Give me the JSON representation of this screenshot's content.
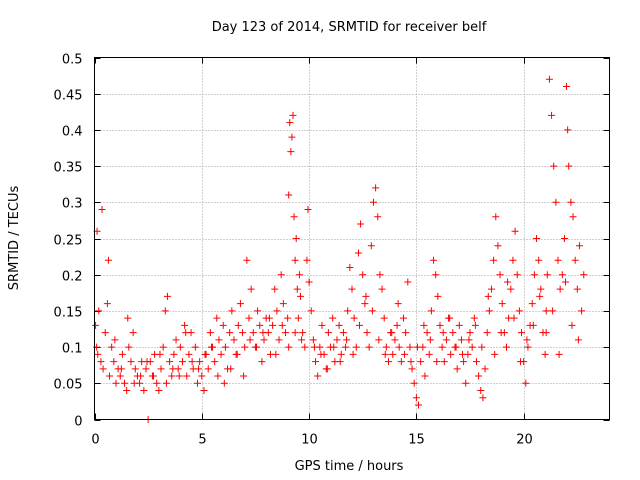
{
  "chart_data": {
    "type": "scatter",
    "title": "Day 123 of 2014, SRMTID for receiver belf",
    "xlabel": "GPS time / hours",
    "ylabel": "SRMTID / TECUs",
    "xlim": [
      0,
      24
    ],
    "ylim": [
      0,
      0.5
    ],
    "x_ticks": [
      0,
      5,
      10,
      15,
      20
    ],
    "x_tick_labels": [
      "0",
      "5",
      "10",
      "15",
      "20"
    ],
    "y_ticks": [
      0,
      0.05,
      0.1,
      0.15,
      0.2,
      0.25,
      0.3,
      0.35,
      0.4,
      0.45,
      0.5
    ],
    "y_tick_labels": [
      "0",
      "0.05",
      "0.1",
      "0.15",
      "0.2",
      "0.25",
      "0.3",
      "0.35",
      "0.4",
      "0.45",
      "0.5"
    ],
    "grid": true,
    "marker": "plus",
    "color": "#ff0000",
    "series": [
      {
        "name": "SRMTID",
        "x": [
          0.05,
          0.1,
          0.15,
          0.2,
          0.3,
          0.4,
          0.5,
          0.6,
          0.7,
          0.8,
          0.9,
          1.0,
          1.1,
          1.2,
          1.3,
          1.4,
          1.5,
          1.6,
          1.7,
          1.8,
          1.9,
          2.0,
          2.1,
          2.2,
          2.3,
          2.4,
          2.5,
          2.6,
          2.7,
          2.8,
          2.9,
          3.0,
          3.1,
          3.2,
          3.3,
          3.4,
          3.5,
          3.6,
          3.7,
          3.8,
          3.9,
          4.0,
          4.1,
          4.2,
          4.3,
          4.4,
          4.5,
          4.6,
          4.7,
          4.8,
          4.9,
          5.0,
          5.1,
          5.2,
          5.3,
          5.4,
          5.5,
          5.6,
          5.7,
          5.8,
          5.9,
          6.0,
          6.1,
          6.2,
          6.3,
          6.4,
          6.5,
          6.6,
          6.7,
          6.8,
          6.9,
          7.0,
          7.1,
          7.2,
          7.3,
          7.4,
          7.5,
          7.6,
          7.7,
          7.8,
          7.9,
          8.0,
          8.1,
          8.2,
          8.3,
          8.4,
          8.5,
          8.6,
          8.7,
          8.8,
          8.9,
          9.0,
          9.05,
          9.1,
          9.15,
          9.2,
          9.25,
          9.3,
          9.35,
          9.4,
          9.45,
          9.5,
          9.55,
          9.6,
          9.7,
          9.8,
          9.9,
          10.0,
          10.1,
          10.2,
          10.3,
          10.4,
          10.5,
          10.6,
          10.7,
          10.8,
          10.9,
          11.0,
          11.1,
          11.2,
          11.3,
          11.4,
          11.5,
          11.6,
          11.7,
          11.8,
          11.9,
          12.0,
          12.1,
          12.2,
          12.3,
          12.4,
          12.5,
          12.6,
          12.7,
          12.8,
          12.9,
          13.0,
          13.1,
          13.2,
          13.3,
          13.4,
          13.5,
          13.6,
          13.7,
          13.8,
          13.9,
          14.0,
          14.1,
          14.2,
          14.3,
          14.4,
          14.5,
          14.6,
          14.7,
          14.8,
          14.9,
          15.0,
          15.1,
          15.2,
          15.3,
          15.4,
          15.5,
          15.6,
          15.7,
          15.8,
          15.9,
          16.0,
          16.1,
          16.2,
          16.3,
          16.4,
          16.5,
          16.6,
          16.7,
          16.8,
          16.9,
          17.0,
          17.1,
          17.2,
          17.3,
          17.4,
          17.5,
          17.6,
          17.7,
          17.8,
          17.9,
          18.0,
          18.1,
          18.2,
          18.3,
          18.4,
          18.5,
          18.6,
          18.7,
          18.8,
          18.9,
          19.0,
          19.1,
          19.2,
          19.3,
          19.4,
          19.5,
          19.6,
          19.7,
          19.8,
          19.9,
          20.0,
          20.1,
          20.2,
          20.3,
          20.4,
          20.5,
          20.6,
          20.7,
          20.8,
          20.9,
          21.0,
          21.05,
          21.1,
          21.2,
          21.3,
          21.4,
          21.5,
          21.6,
          21.7,
          21.8,
          21.9,
          22.0,
          22.05,
          22.1,
          22.2,
          22.3,
          22.4,
          22.5,
          22.6,
          22.7,
          22.8,
          0.12,
          0.35,
          0.65,
          0.95,
          1.25,
          1.55,
          1.85,
          2.15,
          2.45,
          2.75,
          3.05,
          3.35,
          3.65,
          3.95,
          4.25,
          4.55,
          4.85,
          5.15,
          5.45,
          5.75,
          6.05,
          6.35,
          6.65,
          6.95,
          7.25,
          7.55,
          7.85,
          8.15,
          8.45,
          8.75,
          9.05,
          9.35,
          9.65,
          9.95,
          10.25,
          10.55,
          10.85,
          11.15,
          11.45,
          11.75,
          12.05,
          12.35,
          12.65,
          12.95,
          13.25,
          13.55,
          13.85,
          14.15,
          14.45,
          14.75,
          15.05,
          15.35,
          15.65,
          15.95,
          16.25,
          16.55,
          16.85,
          17.15,
          17.45,
          17.75,
          18.05,
          18.35,
          18.65,
          18.95,
          19.25,
          19.55,
          19.85,
          20.15,
          20.45,
          20.75,
          21.05,
          21.35,
          21.65,
          21.95,
          22.25,
          22.55
        ],
        "y": [
          0.13,
          0.1,
          0.09,
          0.15,
          0.08,
          0.07,
          0.12,
          0.16,
          0.06,
          0.1,
          0.08,
          0.05,
          0.07,
          0.06,
          0.09,
          0.05,
          0.04,
          0.1,
          0.08,
          0.12,
          0.07,
          0.06,
          0.05,
          0.08,
          0.04,
          0.07,
          0.0,
          0.08,
          0.06,
          0.09,
          0.05,
          0.04,
          0.07,
          0.1,
          0.15,
          0.17,
          0.08,
          0.06,
          0.09,
          0.11,
          0.07,
          0.1,
          0.08,
          0.13,
          0.06,
          0.09,
          0.12,
          0.07,
          0.1,
          0.05,
          0.08,
          0.06,
          0.04,
          0.09,
          0.07,
          0.12,
          0.1,
          0.08,
          0.14,
          0.11,
          0.09,
          0.13,
          0.1,
          0.07,
          0.12,
          0.15,
          0.11,
          0.09,
          0.13,
          0.16,
          0.12,
          0.1,
          0.22,
          0.14,
          0.18,
          0.12,
          0.1,
          0.15,
          0.13,
          0.08,
          0.11,
          0.14,
          0.12,
          0.09,
          0.13,
          0.18,
          0.15,
          0.11,
          0.2,
          0.16,
          0.12,
          0.14,
          0.31,
          0.41,
          0.37,
          0.39,
          0.42,
          0.28,
          0.22,
          0.25,
          0.18,
          0.14,
          0.2,
          0.17,
          0.12,
          0.1,
          0.22,
          0.19,
          0.15,
          0.11,
          0.08,
          0.06,
          0.1,
          0.13,
          0.09,
          0.07,
          0.12,
          0.1,
          0.14,
          0.08,
          0.11,
          0.13,
          0.09,
          0.12,
          0.1,
          0.15,
          0.21,
          0.18,
          0.14,
          0.1,
          0.23,
          0.27,
          0.2,
          0.16,
          0.12,
          0.1,
          0.24,
          0.3,
          0.32,
          0.28,
          0.2,
          0.18,
          0.14,
          0.1,
          0.08,
          0.12,
          0.09,
          0.11,
          0.13,
          0.1,
          0.08,
          0.14,
          0.12,
          0.19,
          0.1,
          0.07,
          0.05,
          0.03,
          0.02,
          0.08,
          0.1,
          0.06,
          0.12,
          0.09,
          0.15,
          0.22,
          0.2,
          0.17,
          0.13,
          0.1,
          0.08,
          0.11,
          0.14,
          0.09,
          0.12,
          0.1,
          0.07,
          0.13,
          0.11,
          0.08,
          0.05,
          0.09,
          0.12,
          0.1,
          0.14,
          0.08,
          0.06,
          0.04,
          0.03,
          0.07,
          0.12,
          0.15,
          0.18,
          0.22,
          0.28,
          0.24,
          0.2,
          0.16,
          0.12,
          0.1,
          0.14,
          0.18,
          0.22,
          0.26,
          0.2,
          0.15,
          0.12,
          0.08,
          0.05,
          0.1,
          0.13,
          0.16,
          0.2,
          0.25,
          0.22,
          0.18,
          0.12,
          0.09,
          0.15,
          0.2,
          0.47,
          0.42,
          0.35,
          0.3,
          0.22,
          0.18,
          0.2,
          0.25,
          0.46,
          0.4,
          0.35,
          0.3,
          0.28,
          0.22,
          0.18,
          0.24,
          0.15,
          0.2,
          0.26,
          0.29,
          0.22,
          0.11,
          0.07,
          0.14,
          0.05,
          0.06,
          0.08,
          0.06,
          0.09,
          0.05,
          0.07,
          0.06,
          0.12,
          0.08,
          0.07,
          0.09,
          0.1,
          0.06,
          0.05,
          0.07,
          0.09,
          0.06,
          0.11,
          0.1,
          0.12,
          0.14,
          0.09,
          0.13,
          0.1,
          0.12,
          0.11,
          0.29,
          0.1,
          0.09,
          0.07,
          0.1,
          0.08,
          0.11,
          0.09,
          0.13,
          0.17,
          0.15,
          0.11,
          0.09,
          0.12,
          0.16,
          0.09,
          0.08,
          0.1,
          0.13,
          0.11,
          0.08,
          0.12,
          0.14,
          0.1,
          0.09,
          0.11,
          0.13,
          0.1,
          0.17,
          0.09,
          0.12,
          0.19,
          0.14,
          0.08,
          0.11,
          0.13,
          0.17,
          0.12,
          0.15,
          0.09,
          0.19,
          0.13,
          0.11
        ]
      }
    ]
  }
}
